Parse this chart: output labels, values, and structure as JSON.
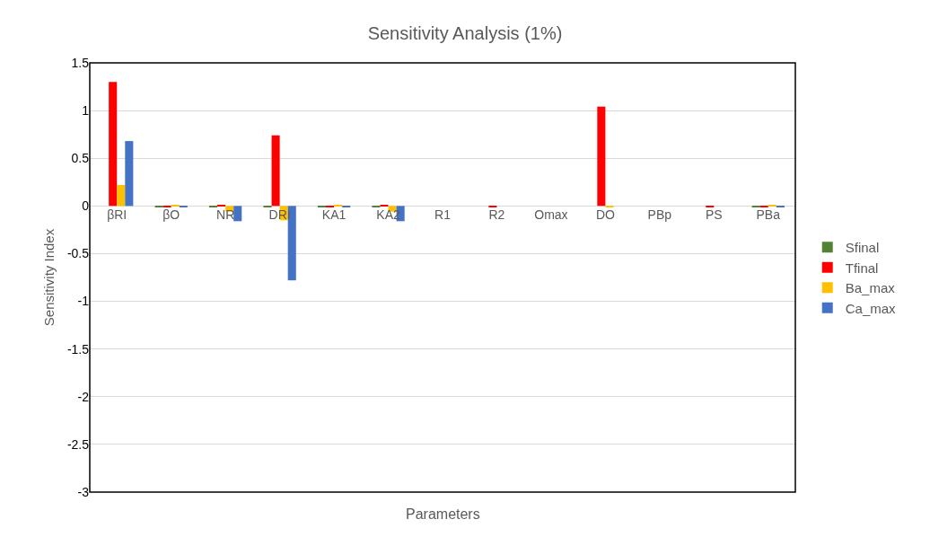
{
  "chart_data": {
    "type": "bar",
    "title": "Sensitivity Analysis (1%)",
    "xlabel": "Parameters",
    "ylabel": "Sensitivity Index",
    "categories": [
      "βRI",
      "βO",
      "NR",
      "DRI",
      "KA1",
      "KA2",
      "R1",
      "R2",
      "Omax",
      "DO",
      "PBp",
      "PS",
      "PBa"
    ],
    "series": [
      {
        "name": "Sfinal",
        "color": "#548235",
        "values": [
          0,
          -0.01,
          -0.01,
          -0.01,
          -0.01,
          -0.01,
          0,
          0,
          0,
          0,
          0,
          0,
          -0.01
        ]
      },
      {
        "name": "Tfinal",
        "color": "#ff0000",
        "values": [
          1.3,
          -0.01,
          0.01,
          0.74,
          -0.01,
          0.01,
          0,
          -0.01,
          0,
          1.04,
          0,
          -0.01,
          -0.01
        ]
      },
      {
        "name": "Ba_max",
        "color": "#ffc000",
        "values": [
          0.22,
          0.01,
          -0.06,
          -0.15,
          0.01,
          -0.06,
          0,
          0,
          0,
          -0.01,
          0,
          0,
          0.01
        ]
      },
      {
        "name": "Ca_max",
        "color": "#4472c4",
        "values": [
          0.68,
          -0.01,
          -0.16,
          -0.78,
          -0.01,
          -0.16,
          0,
          0,
          0,
          0,
          0,
          0,
          -0.01
        ]
      }
    ],
    "ylim": [
      -3,
      1.5
    ],
    "yticks": [
      -3,
      -2.5,
      -2,
      -1.5,
      -1,
      -0.5,
      0,
      0.5,
      1,
      1.5
    ],
    "grid": "y",
    "legend": "right"
  }
}
